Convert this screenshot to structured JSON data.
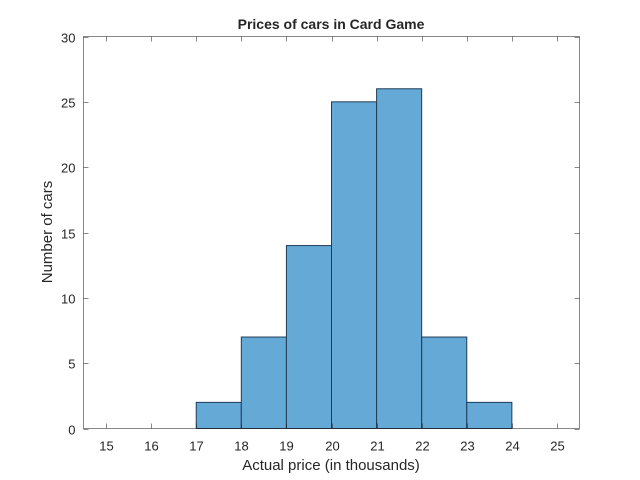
{
  "chart_data": {
    "type": "bar",
    "subtype": "histogram",
    "title": "Prices of cars in Card Game",
    "xlabel": "Actual price (in thousands)",
    "ylabel": "Number of cars",
    "xlim": [
      14.5,
      25.5
    ],
    "ylim": [
      0,
      30
    ],
    "xticks": [
      15,
      16,
      17,
      18,
      19,
      20,
      21,
      22,
      23,
      24,
      25
    ],
    "yticks": [
      0,
      5,
      10,
      15,
      20,
      25,
      30
    ],
    "bin_edges": [
      17,
      18,
      19,
      20,
      21,
      22,
      23,
      24
    ],
    "categories": [
      "17-18",
      "18-19",
      "19-20",
      "20-21",
      "21-22",
      "22-23",
      "23-24"
    ],
    "values": [
      2,
      7,
      14,
      25,
      26,
      7,
      2
    ],
    "grid": false,
    "legend": null,
    "bar_color": "#65a9d7",
    "edge_color": "#1f3d57"
  }
}
